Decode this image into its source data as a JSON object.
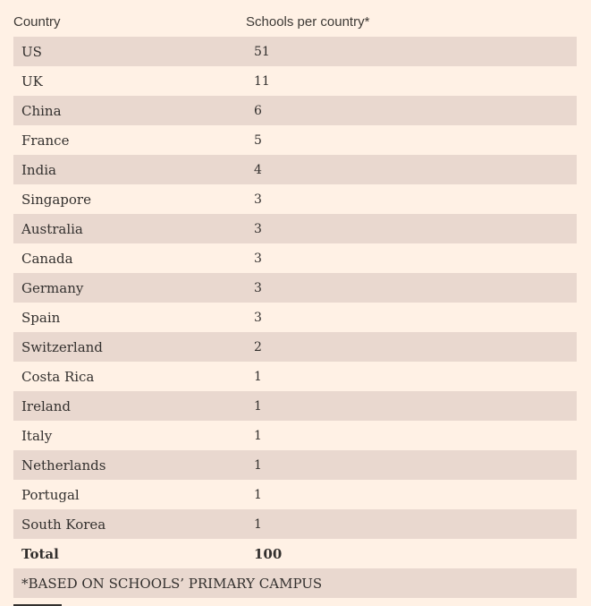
{
  "header": {
    "country_label": "Country",
    "schools_label": "Schools per country*"
  },
  "rows": [
    {
      "country": "US",
      "schools": "51"
    },
    {
      "country": "UK",
      "schools": "11"
    },
    {
      "country": "China",
      "schools": "6"
    },
    {
      "country": "France",
      "schools": "5"
    },
    {
      "country": "India",
      "schools": "4"
    },
    {
      "country": "Singapore",
      "schools": "3"
    },
    {
      "country": "Australia",
      "schools": "3"
    },
    {
      "country": "Canada",
      "schools": "3"
    },
    {
      "country": "Germany",
      "schools": "3"
    },
    {
      "country": "Spain",
      "schools": "3"
    },
    {
      "country": "Switzerland",
      "schools": "2"
    },
    {
      "country": "Costa Rica",
      "schools": "1"
    },
    {
      "country": "Ireland",
      "schools": "1"
    },
    {
      "country": "Italy",
      "schools": "1"
    },
    {
      "country": "Netherlands",
      "schools": "1"
    },
    {
      "country": "Portugal",
      "schools": "1"
    },
    {
      "country": "South Korea",
      "schools": "1"
    }
  ],
  "total": {
    "label": "Total",
    "value": "100"
  },
  "footnote": "*BASED ON SCHOOLS’ PRIMARY CAMPUS",
  "colors": {
    "background": "#fff1e5",
    "row_shade": "#e9d8cf",
    "text": "#33302e"
  }
}
